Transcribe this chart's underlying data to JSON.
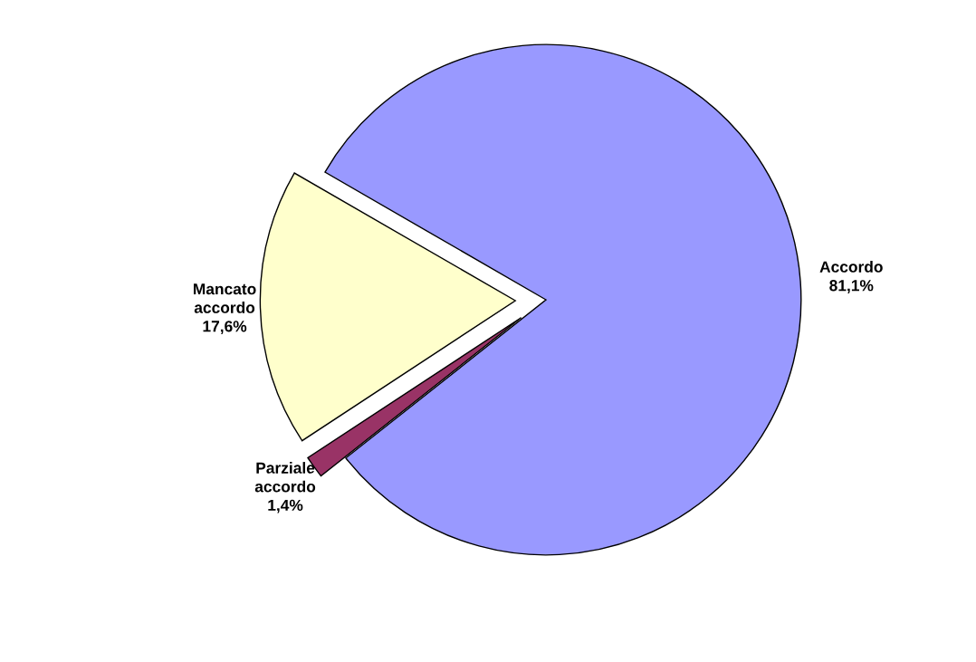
{
  "chart_data": {
    "type": "pie",
    "categories": [
      "Accordo",
      "Parziale accordo",
      "Mancato accordo"
    ],
    "values": [
      81.1,
      1.4,
      17.6
    ],
    "value_labels": [
      "81,1%",
      "1,4%",
      "17,6%"
    ],
    "colors": [
      "#9999ff",
      "#993366",
      "#ffffcc"
    ],
    "legend": false
  }
}
